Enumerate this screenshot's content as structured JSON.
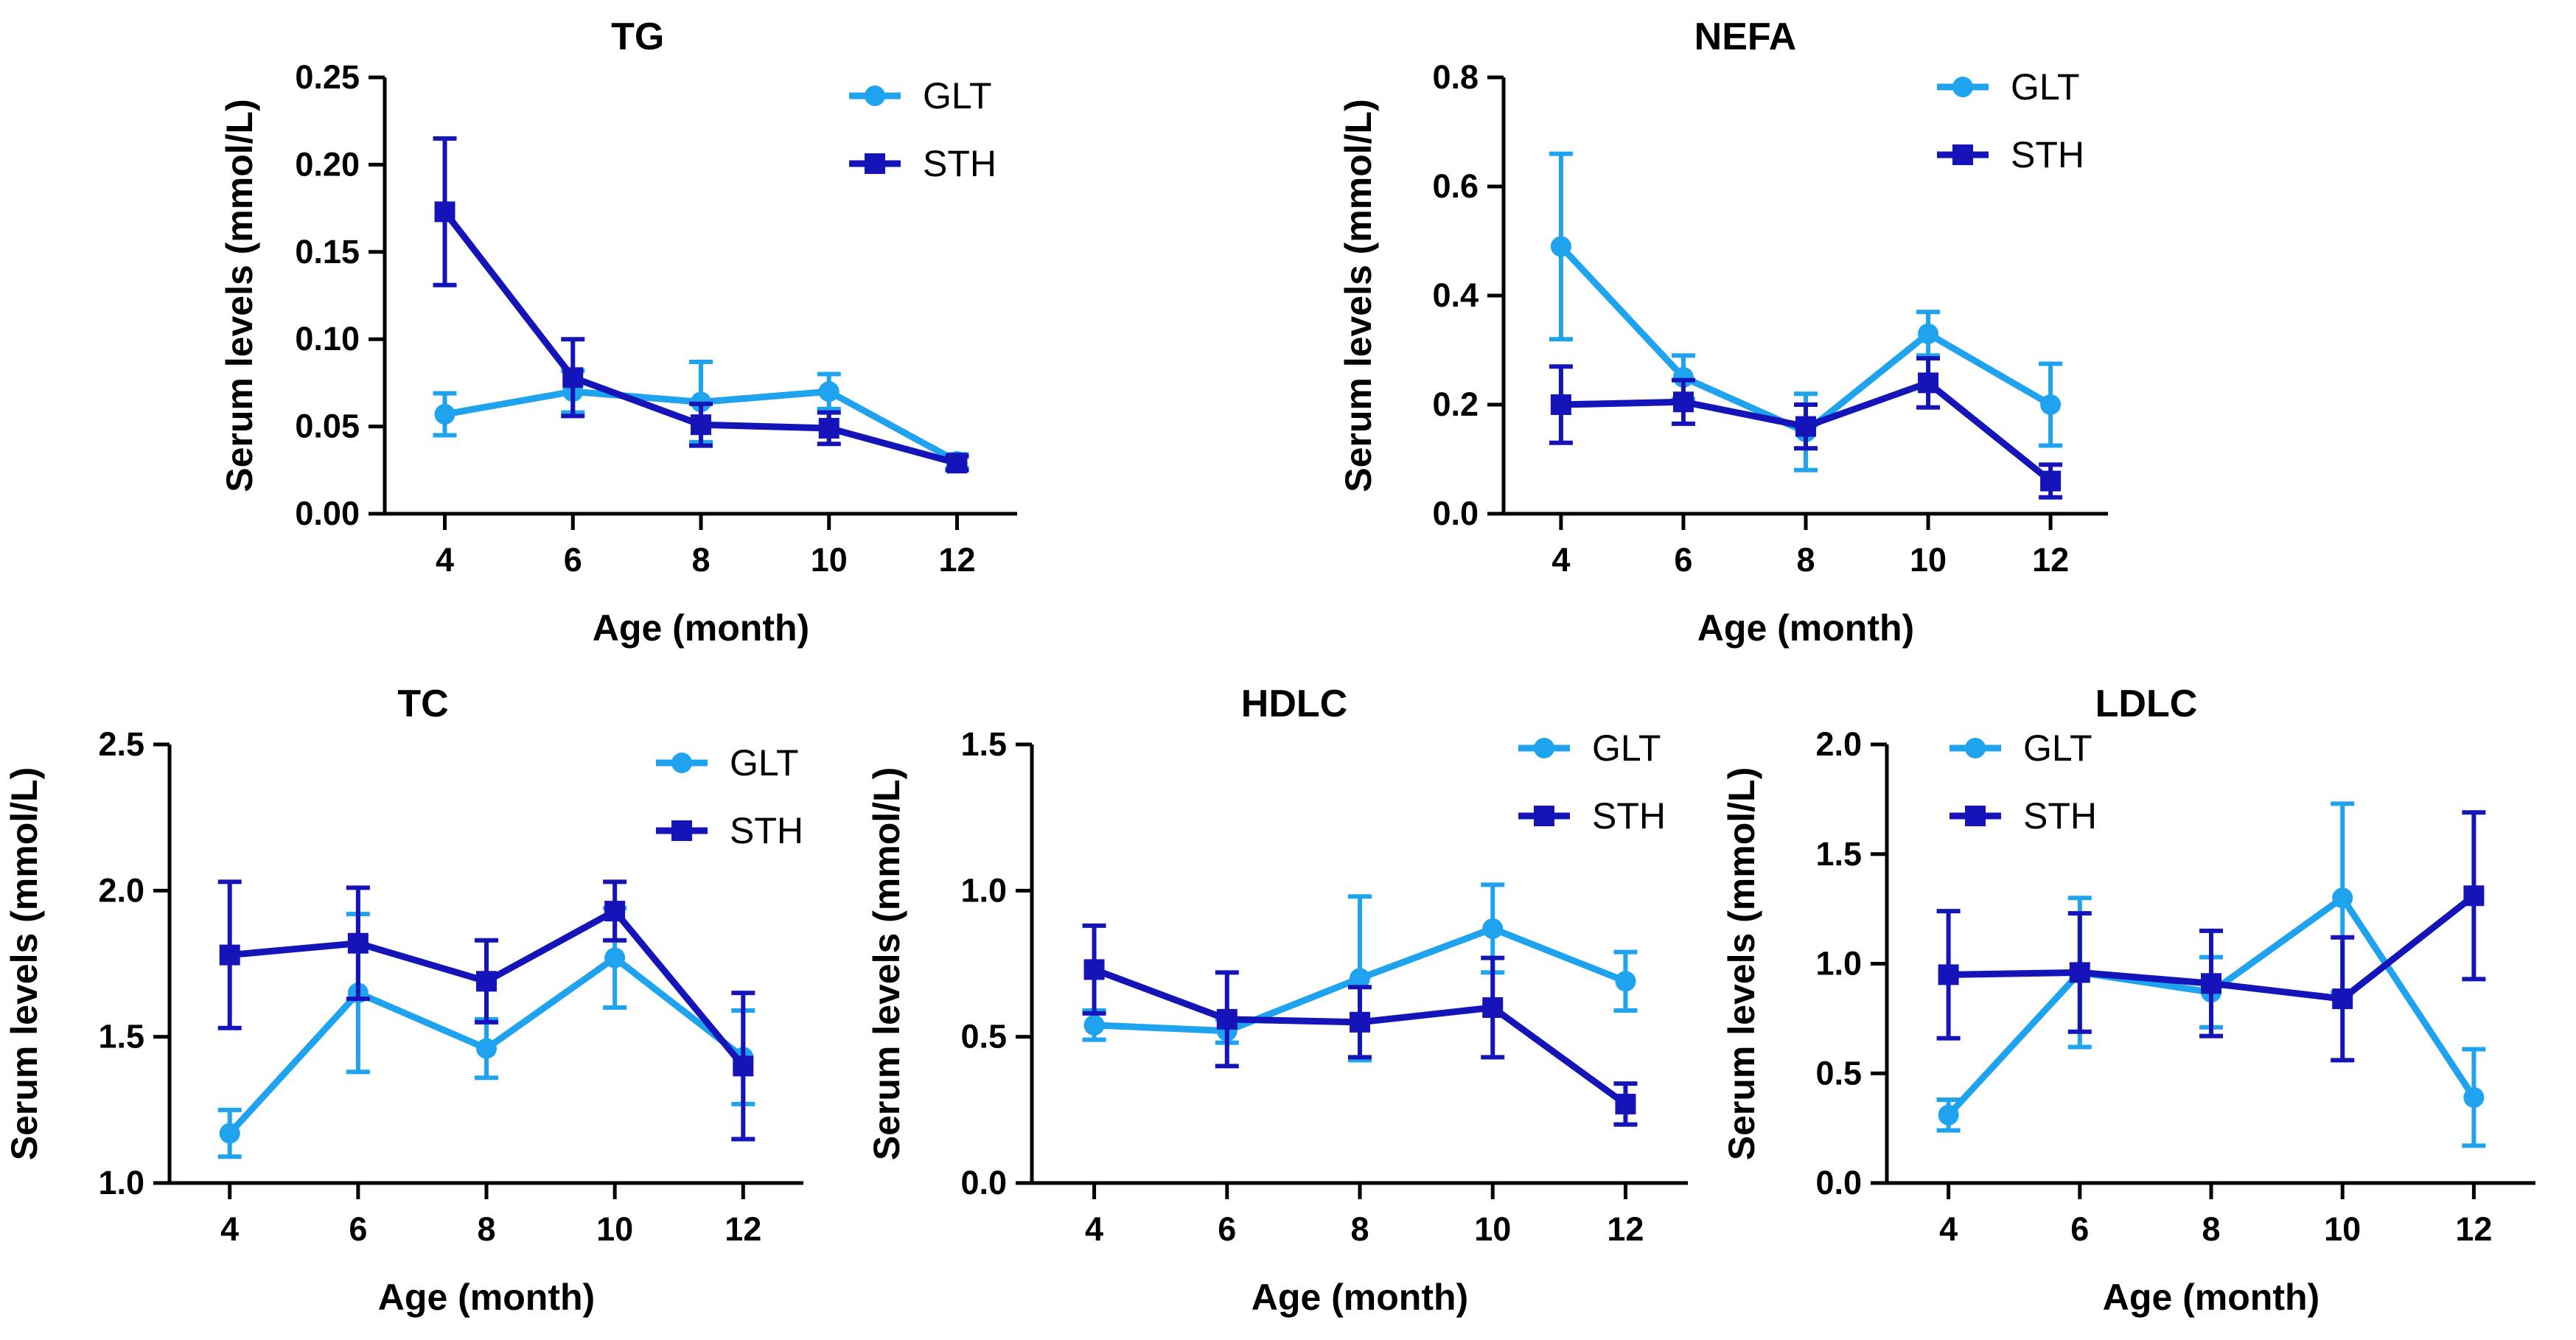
{
  "colors": {
    "glt": "#1FA3EF",
    "sth": "#1414B8",
    "axis": "#000000"
  },
  "chart_data": [
    {
      "type": "line",
      "title": "TG",
      "xlabel": "Age (month)",
      "ylabel": "Serum levels (mmol/L)",
      "x": [
        4,
        6,
        8,
        10,
        12
      ],
      "x_ticks": [
        "4",
        "6",
        "8",
        "10",
        "12"
      ],
      "ylim": [
        0,
        0.25
      ],
      "y_ticks": [
        "0.00",
        "0.05",
        "0.10",
        "0.15",
        "0.20",
        "0.25"
      ],
      "legend": "top-right",
      "series": [
        {
          "name": "GLT",
          "marker": "circle",
          "values": [
            0.057,
            0.07,
            0.064,
            0.07,
            0.03
          ],
          "errors": [
            0.012,
            0.012,
            0.023,
            0.01,
            0.004
          ]
        },
        {
          "name": "STH",
          "marker": "square",
          "values": [
            0.173,
            0.078,
            0.051,
            0.049,
            0.029
          ],
          "errors": [
            0.042,
            0.022,
            0.012,
            0.009,
            0.004
          ]
        }
      ]
    },
    {
      "type": "line",
      "title": "NEFA",
      "xlabel": "Age (month)",
      "ylabel": "Serum levels (mmol/L)",
      "x": [
        4,
        6,
        8,
        10,
        12
      ],
      "x_ticks": [
        "4",
        "6",
        "8",
        "10",
        "12"
      ],
      "ylim": [
        0,
        0.8
      ],
      "y_ticks": [
        "0.0",
        "0.2",
        "0.4",
        "0.6",
        "0.8"
      ],
      "legend": "top-right",
      "series": [
        {
          "name": "GLT",
          "marker": "circle",
          "values": [
            0.49,
            0.25,
            0.15,
            0.33,
            0.2
          ],
          "errors": [
            0.17,
            0.04,
            0.07,
            0.04,
            0.075
          ]
        },
        {
          "name": "STH",
          "marker": "square",
          "values": [
            0.2,
            0.205,
            0.16,
            0.24,
            0.06
          ],
          "errors": [
            0.07,
            0.04,
            0.04,
            0.045,
            0.03
          ]
        }
      ]
    },
    {
      "type": "line",
      "title": "TC",
      "xlabel": "Age (month)",
      "ylabel": "Serum levels (mmol/L)",
      "x": [
        4,
        6,
        8,
        10,
        12
      ],
      "x_ticks": [
        "4",
        "6",
        "8",
        "10",
        "12"
      ],
      "ylim": [
        1.0,
        2.5
      ],
      "y_ticks": [
        "1.0",
        "1.5",
        "2.0",
        "2.5"
      ],
      "legend": "top-right",
      "series": [
        {
          "name": "GLT",
          "marker": "circle",
          "values": [
            1.17,
            1.65,
            1.46,
            1.77,
            1.43
          ],
          "errors": [
            0.08,
            0.27,
            0.1,
            0.17,
            0.16
          ]
        },
        {
          "name": "STH",
          "marker": "square",
          "values": [
            1.78,
            1.82,
            1.69,
            1.93,
            1.4
          ],
          "errors": [
            0.25,
            0.19,
            0.14,
            0.1,
            0.25
          ]
        }
      ]
    },
    {
      "type": "line",
      "title": "HDLC",
      "xlabel": "Age (month)",
      "ylabel": "Serum levels (mmol/L)",
      "x": [
        4,
        6,
        8,
        10,
        12
      ],
      "x_ticks": [
        "4",
        "6",
        "8",
        "10",
        "12"
      ],
      "ylim": [
        0.0,
        1.5
      ],
      "y_ticks": [
        "0.0",
        "0.5",
        "1.0",
        "1.5"
      ],
      "legend": "top-right",
      "series": [
        {
          "name": "GLT",
          "marker": "circle",
          "values": [
            0.54,
            0.52,
            0.7,
            0.87,
            0.69
          ],
          "errors": [
            0.05,
            0.04,
            0.28,
            0.15,
            0.1
          ]
        },
        {
          "name": "STH",
          "marker": "square",
          "values": [
            0.73,
            0.56,
            0.55,
            0.6,
            0.27
          ],
          "errors": [
            0.15,
            0.16,
            0.12,
            0.17,
            0.07
          ]
        }
      ]
    },
    {
      "type": "line",
      "title": "LDLC",
      "xlabel": "Age (month)",
      "ylabel": "Serum levels (mmol/L)",
      "x": [
        4,
        6,
        8,
        10,
        12
      ],
      "x_ticks": [
        "4",
        "6",
        "8",
        "10",
        "12"
      ],
      "ylim": [
        0.0,
        2.0
      ],
      "y_ticks": [
        "0.0",
        "0.5",
        "1.0",
        "1.5",
        "2.0"
      ],
      "legend": "top-left",
      "series": [
        {
          "name": "GLT",
          "marker": "circle",
          "values": [
            0.31,
            0.96,
            0.87,
            1.3,
            0.39
          ],
          "errors": [
            0.07,
            0.34,
            0.16,
            0.43,
            0.22
          ]
        },
        {
          "name": "STH",
          "marker": "square",
          "values": [
            0.95,
            0.96,
            0.91,
            0.84,
            1.31
          ],
          "errors": [
            0.29,
            0.27,
            0.24,
            0.28,
            0.38
          ]
        }
      ]
    }
  ]
}
